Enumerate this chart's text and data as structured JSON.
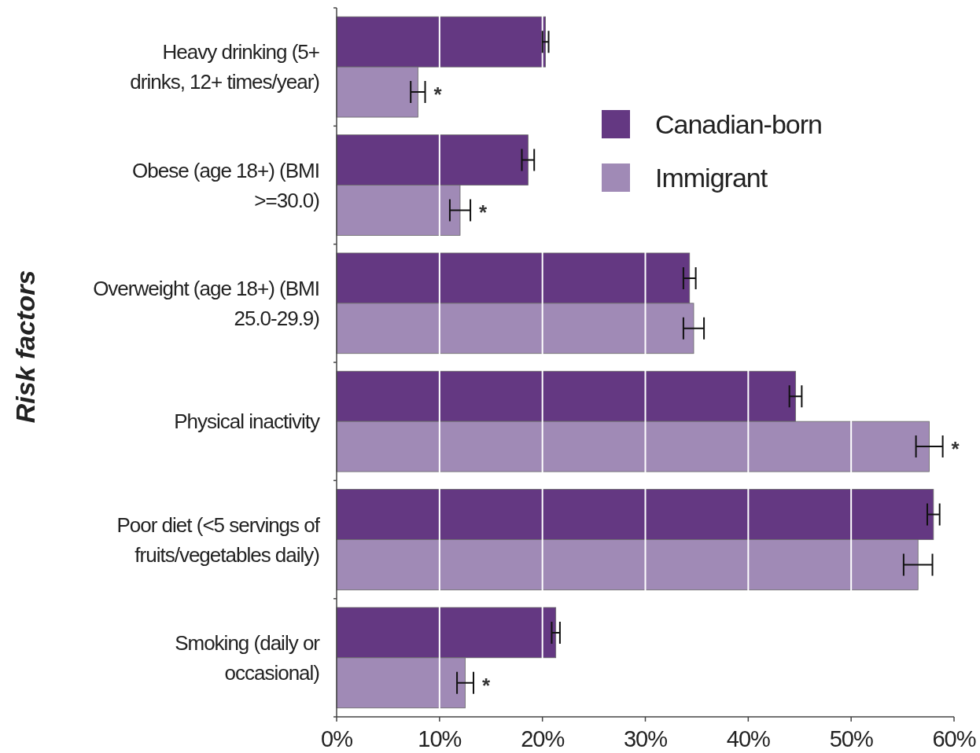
{
  "chart_data": {
    "type": "bar",
    "orientation": "horizontal",
    "ylabel": "Risk factors",
    "categories": [
      "Heavy drinking (5+ drinks, 12+ times/year)",
      "Obese (age 18+) (BMI >=30.0)",
      "Overweight (age 18+) (BMI 25.0-29.9)",
      "Physical inactivity",
      "Poor diet (<5 servings of fruits/vegetables daily)",
      "Smoking (daily or occasional)"
    ],
    "series": [
      {
        "name": "Canadian-born",
        "color": "#643882",
        "values": [
          20.3,
          18.6,
          34.3,
          44.6,
          58.0,
          21.3
        ],
        "errors": [
          0.3,
          0.6,
          0.6,
          0.6,
          0.6,
          0.4
        ]
      },
      {
        "name": "Immigrant",
        "color": "#a08ab6",
        "values": [
          7.9,
          12.0,
          34.7,
          57.6,
          56.5,
          12.5
        ],
        "errors": [
          0.7,
          1.0,
          1.0,
          1.3,
          1.4,
          0.8
        ]
      }
    ],
    "xlim": [
      0,
      60
    ],
    "xticks": [
      {
        "value": 0,
        "label": "0%"
      },
      {
        "value": 10,
        "label": "10%"
      },
      {
        "value": 20,
        "label": "20%"
      },
      {
        "value": 30,
        "label": "30%"
      },
      {
        "value": 40,
        "label": "40%"
      },
      {
        "value": 50,
        "label": "50%"
      },
      {
        "value": 60,
        "label": "60%"
      }
    ],
    "grid": "x",
    "legend": "top right",
    "annotations": [
      {
        "text": "*",
        "x": 7.9,
        "y": "Heavy drinking (5+ drinks, 12+ times/year)"
      },
      {
        "text": "*",
        "x": 12.0,
        "y": "Obese (age 18+) (BMI >=30.0)"
      },
      {
        "text": "*",
        "x": 57.6,
        "y": "Physical inactivity"
      },
      {
        "text": "*",
        "x": 12.5,
        "y": "Smoking (daily or occasional)"
      }
    ]
  }
}
